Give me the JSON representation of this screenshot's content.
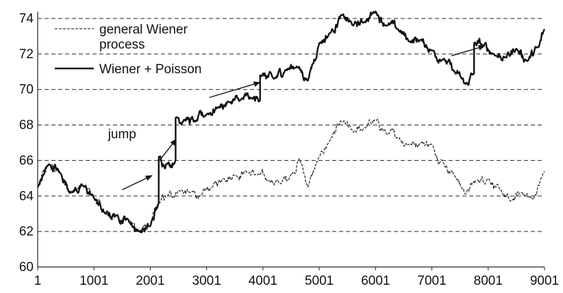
{
  "chart_data": {
    "type": "line",
    "title": "",
    "xlabel": "",
    "ylabel": "",
    "xlim": [
      1,
      9001
    ],
    "ylim": [
      60,
      74
    ],
    "grid": "horizontal dashed",
    "legend_position": "top-left",
    "x_tick_labels": [
      "1",
      "1001",
      "2001",
      "3001",
      "4001",
      "5001",
      "6001",
      "7001",
      "8001",
      "9001"
    ],
    "y_tick_labels": [
      "60",
      "62",
      "64",
      "66",
      "68",
      "70",
      "72",
      "74"
    ],
    "legend": [
      {
        "label_line1": "general Wiener",
        "label_line2": "process",
        "style": "dashed"
      },
      {
        "label_line1": "Wiener + Poisson",
        "label_line2": "",
        "style": "solid"
      }
    ],
    "annotations": [
      {
        "text": "jump"
      }
    ],
    "series": [
      {
        "name": "general Wiener process",
        "style": "dashed",
        "x": [
          1,
          200,
          400,
          600,
          800,
          1000,
          1200,
          1400,
          1600,
          1800,
          2000,
          2150,
          2300,
          2500,
          2700,
          2900,
          3100,
          3300,
          3500,
          3700,
          3900,
          4100,
          4300,
          4500,
          4650,
          4800,
          5000,
          5200,
          5400,
          5600,
          5800,
          6000,
          6200,
          6400,
          6600,
          6800,
          7000,
          7200,
          7400,
          7600,
          7800,
          8000,
          8200,
          8400,
          8600,
          8800,
          9001
        ],
        "values": [
          64.5,
          65.8,
          65.3,
          64.2,
          64.6,
          63.9,
          63.0,
          62.9,
          62.7,
          62.0,
          62.3,
          63.6,
          64.0,
          64.3,
          64.2,
          64.0,
          64.5,
          65.0,
          65.2,
          65.4,
          65.2,
          64.9,
          64.7,
          65.2,
          66.1,
          64.5,
          66.2,
          67.2,
          68.2,
          67.6,
          67.8,
          68.3,
          67.5,
          67.3,
          66.9,
          67.0,
          66.9,
          65.9,
          65.2,
          64.1,
          64.9,
          65.0,
          64.4,
          63.7,
          64.2,
          63.8,
          65.4
        ]
      },
      {
        "name": "Wiener + Poisson",
        "style": "solid",
        "x": [
          1,
          200,
          400,
          600,
          800,
          1000,
          1200,
          1400,
          1600,
          1800,
          2000,
          2150,
          2151,
          2300,
          2450,
          2451,
          2600,
          2800,
          3000,
          3200,
          3400,
          3600,
          3800,
          3950,
          3951,
          4200,
          4400,
          4600,
          4800,
          5000,
          5200,
          5400,
          5600,
          5800,
          6000,
          6200,
          6400,
          6600,
          6800,
          7000,
          7200,
          7400,
          7600,
          7750,
          7751,
          7900,
          8100,
          8300,
          8500,
          8700,
          8900,
          9001
        ],
        "values": [
          64.5,
          65.8,
          65.3,
          64.2,
          64.6,
          63.9,
          63.0,
          62.9,
          62.7,
          62.0,
          62.3,
          63.6,
          66.2,
          65.8,
          66.0,
          68.4,
          68.3,
          68.2,
          68.6,
          69.0,
          69.3,
          69.4,
          69.5,
          69.4,
          70.8,
          70.6,
          71.1,
          71.3,
          70.5,
          72.6,
          73.2,
          74.2,
          73.6,
          73.8,
          74.4,
          73.6,
          73.4,
          72.7,
          72.8,
          72.2,
          71.7,
          71.0,
          70.3,
          70.9,
          72.6,
          72.5,
          72.0,
          71.8,
          72.3,
          71.6,
          72.4,
          73.4
        ]
      }
    ]
  }
}
